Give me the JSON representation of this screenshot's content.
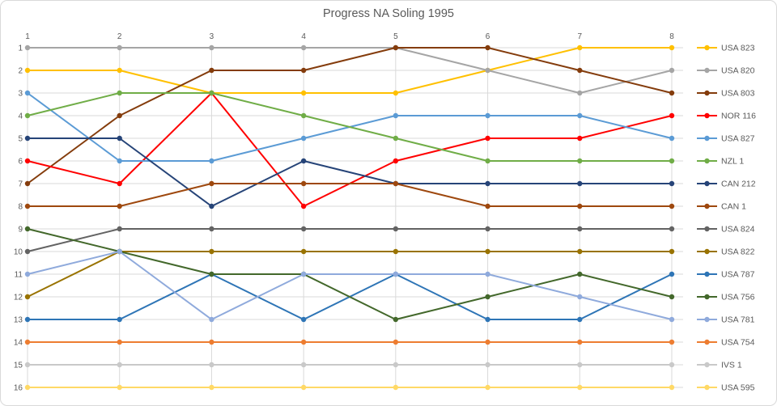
{
  "chart_data": {
    "type": "line",
    "title": "Progress NA Soling 1995",
    "xlabel": "",
    "ylabel": "",
    "x_tick_labels": [
      "1",
      "2",
      "3",
      "4",
      "5",
      "6",
      "7",
      "8"
    ],
    "y_tick_labels": [
      "1",
      "2",
      "3",
      "4",
      "5",
      "6",
      "7",
      "8",
      "9",
      "10",
      "11",
      "12",
      "13",
      "14",
      "15",
      "16"
    ],
    "x_axis_position": "top",
    "y_axis": {
      "min": 1,
      "max": 16,
      "inverted": true
    },
    "grid": true,
    "legend_position": "right",
    "series": [
      {
        "name": "USA 823",
        "color": "#FFC000",
        "values": [
          2,
          2,
          3,
          3,
          3,
          2,
          1,
          1
        ]
      },
      {
        "name": "USA 820",
        "color": "#A5A5A5",
        "values": [
          1,
          1,
          1,
          1,
          1,
          2,
          3,
          2
        ]
      },
      {
        "name": "USA 803",
        "color": "#843C0C",
        "values": [
          7,
          4,
          2,
          2,
          1,
          1,
          2,
          3
        ]
      },
      {
        "name": "NOR 116",
        "color": "#FF0000",
        "values": [
          6,
          7,
          3,
          8,
          6,
          5,
          5,
          4
        ]
      },
      {
        "name": "USA 827",
        "color": "#5B9BD5",
        "values": [
          3,
          6,
          6,
          5,
          4,
          4,
          4,
          5
        ]
      },
      {
        "name": "NZL 1",
        "color": "#70AD47",
        "values": [
          4,
          3,
          3,
          4,
          5,
          6,
          6,
          6
        ]
      },
      {
        "name": "CAN 212",
        "color": "#264478",
        "values": [
          5,
          5,
          8,
          6,
          7,
          7,
          7,
          7
        ]
      },
      {
        "name": "CAN 1",
        "color": "#9E480E",
        "values": [
          8,
          8,
          7,
          7,
          7,
          8,
          8,
          8
        ]
      },
      {
        "name": "USA 824",
        "color": "#636363",
        "values": [
          10,
          9,
          9,
          9,
          9,
          9,
          9,
          9
        ]
      },
      {
        "name": "USA 822",
        "color": "#997300",
        "values": [
          12,
          10,
          10,
          10,
          10,
          10,
          10,
          10
        ]
      },
      {
        "name": "USA 787",
        "color": "#2E75B6",
        "values": [
          13,
          13,
          11,
          13,
          11,
          13,
          13,
          11
        ]
      },
      {
        "name": "USA 756",
        "color": "#43682B",
        "values": [
          9,
          10,
          11,
          11,
          13,
          12,
          11,
          12
        ]
      },
      {
        "name": "USA 781",
        "color": "#8FAADC",
        "values": [
          11,
          10,
          13,
          11,
          11,
          11,
          12,
          13
        ]
      },
      {
        "name": "USA 754",
        "color": "#ED7D31",
        "values": [
          14,
          14,
          14,
          14,
          14,
          14,
          14,
          14
        ]
      },
      {
        "name": "IVS 1",
        "color": "#C9C9C9",
        "values": [
          15,
          15,
          15,
          15,
          15,
          15,
          15,
          15
        ]
      },
      {
        "name": "USA 595",
        "color": "#FFD966",
        "values": [
          16,
          16,
          16,
          16,
          16,
          16,
          16,
          16
        ]
      }
    ]
  },
  "colors": {
    "grid": "#D9D9D9",
    "axis_text": "#595959",
    "title_text": "#595959",
    "frame_border": "#D9D9D9",
    "background": "#FFFFFF"
  }
}
